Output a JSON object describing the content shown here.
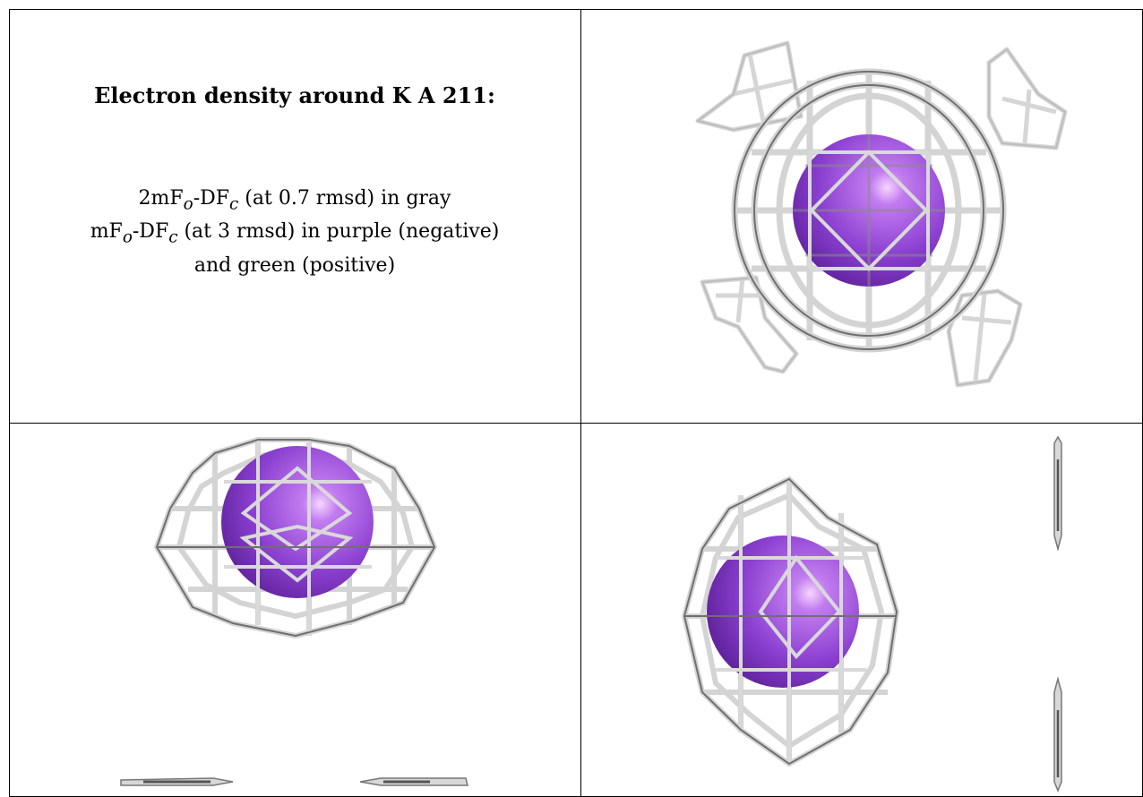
{
  "title": "Electron density around K A 211:",
  "legend": {
    "line1_prefix": "2mF",
    "line1_sub1": "o",
    "line1_mid": "-DF",
    "line1_sub2": "c",
    "line1_suffix": " (at 0.7 rmsd) in gray",
    "line2_prefix": "mF",
    "line2_sub1": "o",
    "line2_mid": "-DF",
    "line2_sub2": "c",
    "line2_suffix": " (at 3 rmsd) in purple (negative)",
    "line3": "and green (positive)"
  },
  "colors": {
    "sphere": "#8a3fd0",
    "mesh_light": "#d9d9d9",
    "mesh_dark": "#7a7a7a",
    "border": "#000000"
  },
  "panels": [
    "view-1",
    "view-2",
    "view-3"
  ]
}
